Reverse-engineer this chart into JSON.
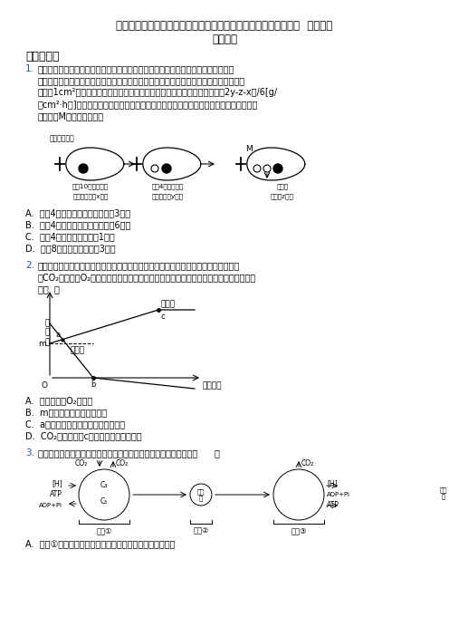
{
  "title_line1": "河南郑州外国语新枫杨学校高一生物上学期细胞的能量供应和利用  单元模拟",
  "title_line2": "测试试题",
  "section1": "一、选择题",
  "q1_num": "1.",
  "q1_lines": [
    "某同学欲测定植物叶片叶绿体的光合作用速率，做了如图十一所示实验，在叶柄基部",
    "作环剥处理（仅限制叶片有机物的输入和输出），于不同时间分别在同一叶片上陆续取下",
    "面积为1cm²的叶圆片烘干后称其重量，测得叶片的叶绿体光合作用速率＝（2y-z-x）/6[g/",
    "（cm²·h）]（不考虑取叶圆片后对叶片生理活动的影响和温度微小变化对叶生理活动的影",
    "响）。则M处的实验条件是"
  ],
  "q1_opt_A": "A.  下午4时后将整个实验装置遮光3小时",
  "q1_opt_B": "B.  下午4时后将整个实验装置遮光6小时",
  "q1_opt_C": "C.  下午4时后在阳光下照射1小时",
  "q1_opt_D": "D.  晚上8时后在无光下放置3小时",
  "q2_num": "2.",
  "q2_lines": [
    "科研小组将某植物置于温度适宜、密闭透明的玻璃罩内，在不同光照强度下测定并计算",
    "出CO₂释放量和O₂产生量（如图所示），假定光照强度不影响呼吸速率，有关分析错误的",
    "是（  ）"
  ],
  "q2_opt_A": "A.  甲曲线表示O₂产生量",
  "q2_opt_B": "B.  m值是在黑暗条件下测得的",
  "q2_opt_C": "C.  a点时植物的光合速率等于呼吸速率",
  "q2_opt_D": "D.  CO₂浓度是限制c点变化的主要外界因素",
  "q3_num": "3.",
  "q3_line": "下图是绿色植物叶肉细胞的部分代谢过程图解，相关叙述正确的是（      ）",
  "q3_opt_A": "A.  过程①表示光合作用暗反应，无光条件下能持续正常进行",
  "background_color": "#ffffff",
  "text_color": "#000000",
  "blue_color": "#1a56cc"
}
